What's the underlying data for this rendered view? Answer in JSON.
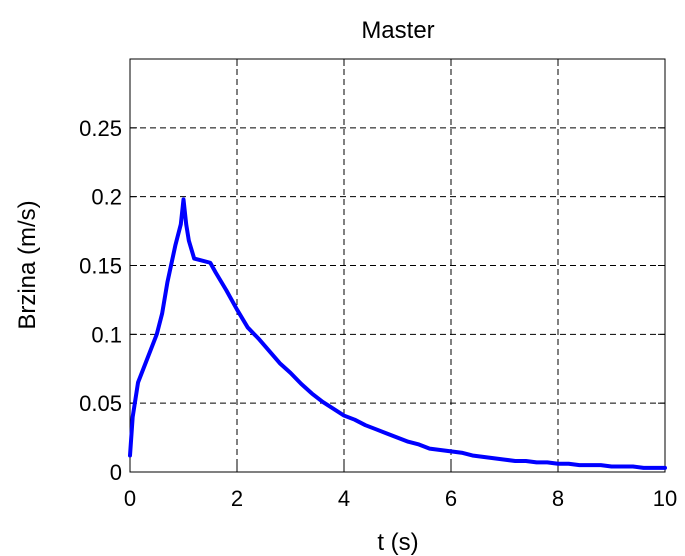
{
  "chart_data": {
    "type": "line",
    "title": "Master",
    "xlabel": "t (s)",
    "ylabel": "Brzina (m/s)",
    "xlim": [
      0,
      10
    ],
    "ylim": [
      0,
      0.3
    ],
    "xticks": [
      0,
      2,
      4,
      6,
      8,
      10
    ],
    "xtick_labels": [
      "0",
      "2",
      "4",
      "6",
      "8",
      "10"
    ],
    "yticks": [
      0,
      0.05,
      0.1,
      0.15,
      0.2,
      0.25
    ],
    "ytick_labels": [
      "0",
      "0.05",
      "0.1",
      "0.15",
      "0.2",
      "0.25"
    ],
    "grid": true,
    "grid_style": "dashed",
    "line_color": "#0000ff",
    "series": [
      {
        "x": [
          0,
          0.05,
          0.15,
          0.3,
          0.5,
          0.6,
          0.7,
          0.85,
          0.95,
          1.0,
          1.05,
          1.1,
          1.2,
          1.3,
          1.5,
          1.6,
          1.8,
          2.0,
          2.2,
          2.4,
          2.6,
          2.8,
          3.0,
          3.2,
          3.4,
          3.6,
          3.8,
          4.0,
          4.2,
          4.4,
          4.6,
          4.8,
          5.0,
          5.2,
          5.4,
          5.6,
          5.8,
          6.0,
          6.2,
          6.4,
          6.6,
          6.8,
          7.0,
          7.2,
          7.4,
          7.6,
          7.8,
          8.0,
          8.2,
          8.4,
          8.6,
          8.8,
          9.0,
          9.2,
          9.4,
          9.6,
          9.8,
          10.0
        ],
        "y": [
          0.012,
          0.04,
          0.065,
          0.08,
          0.1,
          0.115,
          0.138,
          0.165,
          0.18,
          0.198,
          0.18,
          0.168,
          0.155,
          0.154,
          0.152,
          0.145,
          0.132,
          0.118,
          0.105,
          0.097,
          0.088,
          0.079,
          0.072,
          0.064,
          0.057,
          0.051,
          0.046,
          0.041,
          0.038,
          0.034,
          0.031,
          0.028,
          0.025,
          0.022,
          0.02,
          0.017,
          0.016,
          0.015,
          0.014,
          0.012,
          0.011,
          0.01,
          0.009,
          0.008,
          0.008,
          0.007,
          0.007,
          0.006,
          0.006,
          0.005,
          0.005,
          0.005,
          0.004,
          0.004,
          0.004,
          0.003,
          0.003,
          0.003
        ]
      }
    ]
  }
}
